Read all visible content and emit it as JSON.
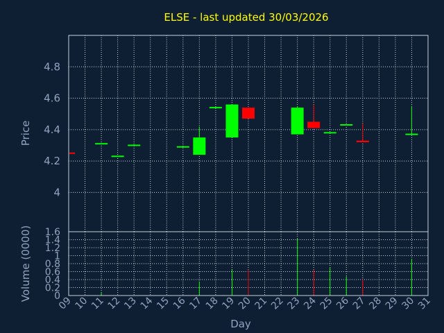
{
  "title": "ELSE - last updated 30/03/2026",
  "colors": {
    "background": "#0e1f33",
    "title": "#ffff00",
    "axis_text": "#8fa4bf",
    "up": "#00ff00",
    "down": "#ff0000"
  },
  "chart_data": [
    {
      "type": "candlestick",
      "ylabel": "Price",
      "ylim": [
        3.75,
        5.0
      ],
      "yticks": [
        {
          "value": 4.0,
          "label": "4"
        },
        {
          "value": 4.2,
          "label": "4.2"
        },
        {
          "value": 4.4,
          "label": "4.4"
        },
        {
          "value": 4.6,
          "label": "4.6"
        },
        {
          "value": 4.8,
          "label": "4.8"
        }
      ],
      "xlim": [
        9,
        31
      ],
      "grid": true,
      "candles": [
        {
          "day": 9,
          "open": 4.25,
          "high": 4.25,
          "low": 4.25,
          "close": 4.25,
          "dir": "down"
        },
        {
          "day": 11,
          "open": 4.31,
          "high": 4.31,
          "low": 4.31,
          "close": 4.31,
          "dir": "up"
        },
        {
          "day": 12,
          "open": 4.23,
          "high": 4.23,
          "low": 4.23,
          "close": 4.23,
          "dir": "up"
        },
        {
          "day": 13,
          "open": 4.3,
          "high": 4.3,
          "low": 4.3,
          "close": 4.3,
          "dir": "up"
        },
        {
          "day": 16,
          "open": 4.29,
          "high": 4.29,
          "low": 4.29,
          "close": 4.29,
          "dir": "up"
        },
        {
          "day": 17,
          "open": 4.24,
          "high": 4.42,
          "low": 4.24,
          "close": 4.35,
          "dir": "up"
        },
        {
          "day": 18,
          "open": 4.54,
          "high": 4.54,
          "low": 4.54,
          "close": 4.54,
          "dir": "up"
        },
        {
          "day": 19,
          "open": 4.35,
          "high": 4.56,
          "low": 4.35,
          "close": 4.56,
          "dir": "up"
        },
        {
          "day": 20,
          "open": 4.54,
          "high": 4.54,
          "low": 4.47,
          "close": 4.47,
          "dir": "down"
        },
        {
          "day": 23,
          "open": 4.37,
          "high": 4.55,
          "low": 4.37,
          "close": 4.54,
          "dir": "up"
        },
        {
          "day": 24,
          "open": 4.45,
          "high": 4.56,
          "low": 4.41,
          "close": 4.41,
          "dir": "down"
        },
        {
          "day": 25,
          "open": 4.38,
          "high": 4.38,
          "low": 4.38,
          "close": 4.38,
          "dir": "up"
        },
        {
          "day": 26,
          "open": 4.43,
          "high": 4.43,
          "low": 4.43,
          "close": 4.43,
          "dir": "up"
        },
        {
          "day": 27,
          "open": 4.33,
          "high": 4.44,
          "low": 4.32,
          "close": 4.32,
          "dir": "down"
        },
        {
          "day": 30,
          "open": 4.37,
          "high": 4.55,
          "low": 4.37,
          "close": 4.37,
          "dir": "up"
        }
      ]
    },
    {
      "type": "bar",
      "ylabel": "Volume (0000)",
      "xlabel": "Day",
      "ylim": [
        0,
        1.6
      ],
      "yticks": [
        {
          "value": 0,
          "label": "0"
        },
        {
          "value": 0.2,
          "label": "0.2"
        },
        {
          "value": 0.4,
          "label": "0.4"
        },
        {
          "value": 0.6,
          "label": "0.6"
        },
        {
          "value": 0.8,
          "label": "0.8"
        },
        {
          "value": 1.0,
          "label": "1"
        },
        {
          "value": 1.2,
          "label": "1.2"
        },
        {
          "value": 1.4,
          "label": "1.4"
        },
        {
          "value": 1.6,
          "label": "1.6"
        }
      ],
      "xlim": [
        9,
        31
      ],
      "xticks": [
        {
          "value": 9,
          "label": "09"
        },
        {
          "value": 10,
          "label": "10"
        },
        {
          "value": 11,
          "label": "11"
        },
        {
          "value": 12,
          "label": "12"
        },
        {
          "value": 13,
          "label": "13"
        },
        {
          "value": 14,
          "label": "14"
        },
        {
          "value": 15,
          "label": "15"
        },
        {
          "value": 16,
          "label": "16"
        },
        {
          "value": 17,
          "label": "17"
        },
        {
          "value": 18,
          "label": "18"
        },
        {
          "value": 19,
          "label": "19"
        },
        {
          "value": 20,
          "label": "20"
        },
        {
          "value": 21,
          "label": "21"
        },
        {
          "value": 22,
          "label": "22"
        },
        {
          "value": 23,
          "label": "23"
        },
        {
          "value": 24,
          "label": "24"
        },
        {
          "value": 25,
          "label": "25"
        },
        {
          "value": 26,
          "label": "26"
        },
        {
          "value": 27,
          "label": "27"
        },
        {
          "value": 28,
          "label": "28"
        },
        {
          "value": 29,
          "label": "29"
        },
        {
          "value": 30,
          "label": "30"
        },
        {
          "value": 31,
          "label": "31"
        }
      ],
      "grid": true,
      "volumes": [
        {
          "day": 11,
          "value": 0.08,
          "dir": "up"
        },
        {
          "day": 17,
          "value": 0.35,
          "dir": "up"
        },
        {
          "day": 19,
          "value": 0.65,
          "dir": "up"
        },
        {
          "day": 20,
          "value": 0.65,
          "dir": "down"
        },
        {
          "day": 23,
          "value": 1.42,
          "dir": "up"
        },
        {
          "day": 24,
          "value": 0.65,
          "dir": "down"
        },
        {
          "day": 25,
          "value": 0.7,
          "dir": "up"
        },
        {
          "day": 26,
          "value": 0.48,
          "dir": "up"
        },
        {
          "day": 27,
          "value": 0.4,
          "dir": "down"
        },
        {
          "day": 30,
          "value": 0.92,
          "dir": "up"
        }
      ]
    }
  ]
}
